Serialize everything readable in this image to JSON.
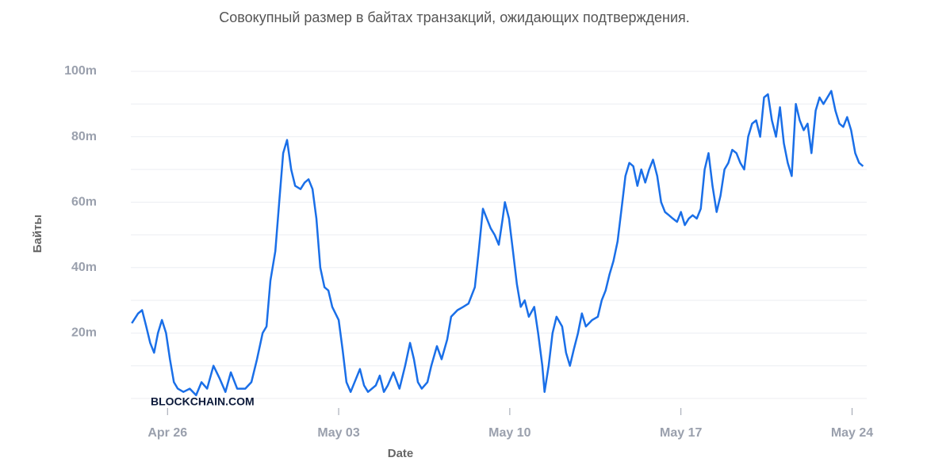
{
  "chart_data": {
    "type": "line",
    "subtitle": "Совокупный размер в байтах транзакций, ожидающих подтверждения.",
    "ylabel": "Байты",
    "xlabel": "Date",
    "watermark": "BLOCKCHAIN.COM",
    "xlim": [
      -1.5,
      28.6
    ],
    "xticks": [
      {
        "value": 0,
        "label": "Apr 26"
      },
      {
        "value": 7,
        "label": "May 03"
      },
      {
        "value": 14,
        "label": "May 10"
      },
      {
        "value": 21,
        "label": "May 17"
      },
      {
        "value": 28,
        "label": "May 24"
      }
    ],
    "ylim": [
      0,
      100
    ],
    "yticks": [
      {
        "value": 20,
        "label": "20m"
      },
      {
        "value": 40,
        "label": "40m"
      },
      {
        "value": 60,
        "label": "60m"
      },
      {
        "value": 80,
        "label": "80m"
      },
      {
        "value": 100,
        "label": "100m"
      }
    ],
    "ygrid": [
      0,
      10,
      20,
      30,
      40,
      50,
      60,
      70,
      80,
      90,
      100
    ],
    "grid": true,
    "x": [
      -1.46,
      -1.2,
      -1.04,
      -0.87,
      -0.71,
      -0.55,
      -0.39,
      -0.23,
      -0.06,
      0.1,
      0.26,
      0.42,
      0.65,
      0.91,
      1.17,
      1.39,
      1.62,
      1.88,
      2.14,
      2.37,
      2.59,
      2.85,
      3.18,
      3.43,
      3.66,
      3.89,
      4.05,
      4.21,
      4.41,
      4.57,
      4.73,
      4.89,
      5.06,
      5.22,
      5.44,
      5.61,
      5.77,
      5.93,
      6.09,
      6.25,
      6.42,
      6.58,
      6.74,
      7.0,
      7.16,
      7.32,
      7.49,
      7.71,
      7.87,
      8.04,
      8.2,
      8.52,
      8.68,
      8.85,
      9.01,
      9.24,
      9.49,
      9.72,
      9.92,
      10.08,
      10.24,
      10.4,
      10.63,
      10.79,
      11.02,
      11.21,
      11.44,
      11.6,
      11.86,
      12.09,
      12.31,
      12.57,
      12.73,
      12.9,
      13.06,
      13.22,
      13.38,
      13.55,
      13.71,
      13.8,
      13.97,
      14.13,
      14.29,
      14.45,
      14.61,
      14.78,
      15.0,
      15.16,
      15.33,
      15.42,
      15.59,
      15.75,
      15.91,
      16.14,
      16.3,
      16.46,
      16.62,
      16.79,
      16.95,
      17.11,
      17.37,
      17.6,
      17.76,
      17.92,
      18.08,
      18.24,
      18.41,
      18.57,
      18.73,
      18.89,
      19.05,
      19.22,
      19.38,
      19.54,
      19.7,
      19.86,
      20.03,
      20.19,
      20.35,
      20.51,
      20.67,
      20.84,
      21.0,
      21.16,
      21.32,
      21.48,
      21.65,
      21.81,
      21.97,
      22.13,
      22.29,
      22.46,
      22.62,
      22.78,
      22.94,
      23.1,
      23.27,
      23.43,
      23.59,
      23.75,
      23.91,
      24.08,
      24.24,
      24.4,
      24.56,
      24.72,
      24.89,
      25.05,
      25.21,
      25.37,
      25.53,
      25.7,
      25.86,
      26.02,
      26.18,
      26.34,
      26.51,
      26.67,
      26.83,
      26.99,
      27.15,
      27.32,
      27.48,
      27.64,
      27.8,
      27.96,
      28.13,
      28.29,
      28.45
    ],
    "series": [
      {
        "color": "#1a6fe8",
        "values": [
          23,
          26,
          27,
          22,
          17,
          14,
          20,
          24,
          20,
          12,
          5,
          3,
          2,
          3,
          1,
          5,
          3,
          10,
          6,
          2,
          8,
          3,
          3,
          5,
          12,
          20,
          22,
          36,
          45,
          60,
          75,
          79,
          70,
          65,
          64,
          66,
          67,
          64,
          55,
          40,
          34,
          33,
          28,
          24,
          15,
          5,
          2,
          6,
          9,
          4,
          2,
          4,
          7,
          2,
          4,
          8,
          3,
          10,
          17,
          12,
          5,
          3,
          5,
          10,
          16,
          12,
          18,
          25,
          27,
          28,
          29,
          34,
          45,
          58,
          55,
          52,
          50,
          47,
          55,
          60,
          55,
          45,
          35,
          28,
          30,
          25,
          28,
          20,
          10,
          2,
          10,
          20,
          25,
          22,
          14,
          10,
          15,
          20,
          26,
          22,
          24,
          25,
          30,
          33,
          38,
          42,
          48,
          58,
          68,
          72,
          71,
          65,
          70,
          66,
          70,
          73,
          68,
          60,
          57,
          56,
          55,
          54,
          57,
          53,
          55,
          56,
          55,
          58,
          70,
          75,
          65,
          57,
          62,
          70,
          72,
          76,
          75,
          72,
          70,
          80,
          84,
          85,
          80,
          92,
          93,
          85,
          80,
          89,
          78,
          72,
          68,
          90,
          85,
          82,
          84,
          75,
          88,
          92,
          90,
          92,
          94,
          88,
          84,
          83,
          86,
          82,
          75,
          72,
          71
        ]
      }
    ]
  }
}
